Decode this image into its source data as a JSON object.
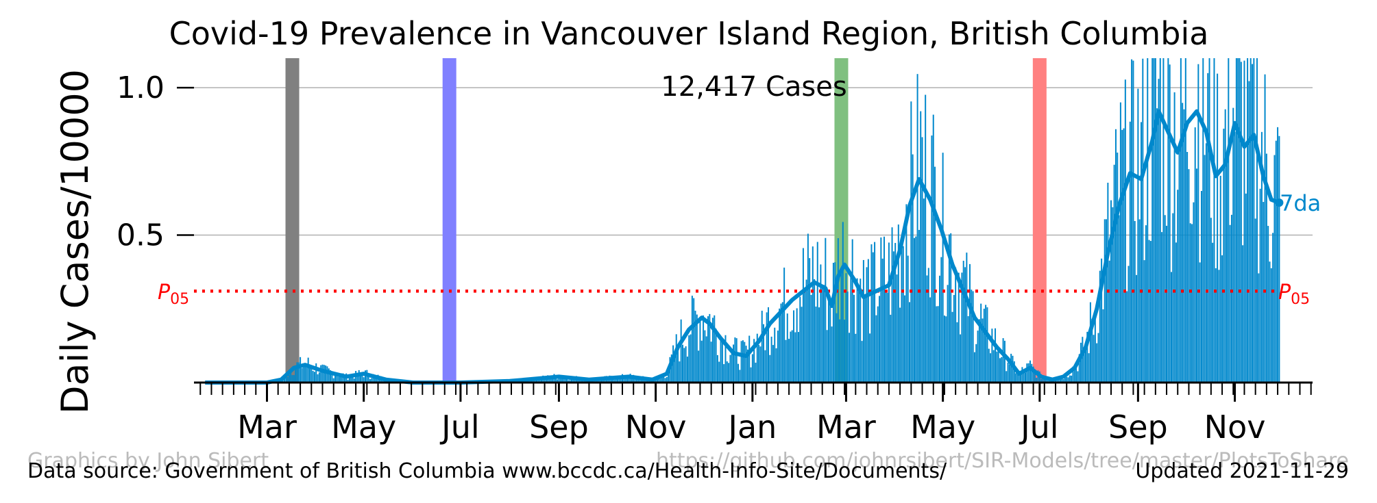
{
  "chart_data": {
    "type": "bar",
    "title": "Covid-19 Prevalence in Vancouver Island Region, British Columbia",
    "ylabel": "Daily Cases/10000",
    "xlabel": "",
    "total_label": "12,417 Cases",
    "ylim": [
      0,
      1.1
    ],
    "yticks": [
      {
        "value": 0.5,
        "label": "0.5"
      },
      {
        "value": 1.0,
        "label": "1.0"
      }
    ],
    "xlim": [
      "2020-01-15",
      "2021-12-20"
    ],
    "month_labels": [
      {
        "date": "2020-03-01",
        "label": "Mar"
      },
      {
        "date": "2020-05-01",
        "label": "May"
      },
      {
        "date": "2020-07-01",
        "label": "Jul"
      },
      {
        "date": "2020-09-01",
        "label": "Sep"
      },
      {
        "date": "2020-11-01",
        "label": "Nov"
      },
      {
        "date": "2021-01-01",
        "label": "Jan"
      },
      {
        "date": "2021-03-01",
        "label": "Mar"
      },
      {
        "date": "2021-05-01",
        "label": "May"
      },
      {
        "date": "2021-07-01",
        "label": "Jul"
      },
      {
        "date": "2021-09-01",
        "label": "Sep"
      },
      {
        "date": "2021-11-01",
        "label": "Nov"
      }
    ],
    "grid": true,
    "bar_color": "#0088CC",
    "series": [
      {
        "name": "7da",
        "kind": "7-day average",
        "color": "#0088CC",
        "points": [
          [
            "2020-01-22",
            0.0
          ],
          [
            "2020-03-01",
            0.0
          ],
          [
            "2020-03-10",
            0.01
          ],
          [
            "2020-03-18",
            0.05
          ],
          [
            "2020-03-25",
            0.06
          ],
          [
            "2020-04-05",
            0.04
          ],
          [
            "2020-04-20",
            0.02
          ],
          [
            "2020-05-01",
            0.03
          ],
          [
            "2020-05-15",
            0.01
          ],
          [
            "2020-06-01",
            0.0
          ],
          [
            "2020-07-01",
            0.0
          ],
          [
            "2020-08-01",
            0.005
          ],
          [
            "2020-09-01",
            0.02
          ],
          [
            "2020-09-20",
            0.01
          ],
          [
            "2020-10-15",
            0.02
          ],
          [
            "2020-10-30",
            0.01
          ],
          [
            "2020-11-08",
            0.03
          ],
          [
            "2020-11-15",
            0.12
          ],
          [
            "2020-11-22",
            0.18
          ],
          [
            "2020-11-30",
            0.22
          ],
          [
            "2020-12-05",
            0.2
          ],
          [
            "2020-12-12",
            0.15
          ],
          [
            "2020-12-20",
            0.1
          ],
          [
            "2020-12-28",
            0.09
          ],
          [
            "2021-01-05",
            0.14
          ],
          [
            "2021-01-12",
            0.2
          ],
          [
            "2021-01-19",
            0.24
          ],
          [
            "2021-01-26",
            0.28
          ],
          [
            "2021-02-02",
            0.31
          ],
          [
            "2021-02-09",
            0.34
          ],
          [
            "2021-02-16",
            0.32
          ],
          [
            "2021-02-20",
            0.26
          ],
          [
            "2021-02-24",
            0.36
          ],
          [
            "2021-02-28",
            0.4
          ],
          [
            "2021-03-06",
            0.35
          ],
          [
            "2021-03-12",
            0.29
          ],
          [
            "2021-03-20",
            0.31
          ],
          [
            "2021-03-28",
            0.33
          ],
          [
            "2021-04-04",
            0.45
          ],
          [
            "2021-04-10",
            0.6
          ],
          [
            "2021-04-16",
            0.69
          ],
          [
            "2021-04-23",
            0.62
          ],
          [
            "2021-04-30",
            0.52
          ],
          [
            "2021-05-07",
            0.4
          ],
          [
            "2021-05-14",
            0.31
          ],
          [
            "2021-05-21",
            0.22
          ],
          [
            "2021-05-28",
            0.17
          ],
          [
            "2021-06-04",
            0.12
          ],
          [
            "2021-06-11",
            0.08
          ],
          [
            "2021-06-18",
            0.03
          ],
          [
            "2021-06-25",
            0.05
          ],
          [
            "2021-07-02",
            0.02
          ],
          [
            "2021-07-09",
            0.01
          ],
          [
            "2021-07-16",
            0.02
          ],
          [
            "2021-07-23",
            0.05
          ],
          [
            "2021-07-30",
            0.12
          ],
          [
            "2021-08-06",
            0.25
          ],
          [
            "2021-08-13",
            0.44
          ],
          [
            "2021-08-20",
            0.6
          ],
          [
            "2021-08-27",
            0.71
          ],
          [
            "2021-09-03",
            0.69
          ],
          [
            "2021-09-10",
            0.82
          ],
          [
            "2021-09-14",
            0.92
          ],
          [
            "2021-09-20",
            0.85
          ],
          [
            "2021-09-26",
            0.78
          ],
          [
            "2021-10-02",
            0.88
          ],
          [
            "2021-10-08",
            0.92
          ],
          [
            "2021-10-14",
            0.85
          ],
          [
            "2021-10-20",
            0.7
          ],
          [
            "2021-10-26",
            0.74
          ],
          [
            "2021-11-01",
            0.88
          ],
          [
            "2021-11-07",
            0.8
          ],
          [
            "2021-11-13",
            0.84
          ],
          [
            "2021-11-19",
            0.7
          ],
          [
            "2021-11-24",
            0.62
          ],
          [
            "2021-11-29",
            0.61
          ]
        ]
      }
    ],
    "reference_line": {
      "label": "P",
      "subscript": "05",
      "value": 0.31,
      "color": "#FF0000",
      "style": "dotted"
    },
    "event_bands": [
      {
        "date": "2020-03-17",
        "color": "#808080"
      },
      {
        "date": "2020-06-24",
        "color": "#8080FF"
      },
      {
        "date": "2021-02-26",
        "color": "#80C080"
      },
      {
        "date": "2021-07-01",
        "color": "#FF8080"
      }
    ],
    "footer": {
      "credit": "Graphics by John Sibert",
      "repo": "https://github.com/johnrsibert/SIR-Models/tree/master/PlotsToShare",
      "source": "Data source: Government of British Columbia www.bccdc.ca/Health-Info-Site/Documents/",
      "updated": "Updated 2021-11-29"
    }
  }
}
